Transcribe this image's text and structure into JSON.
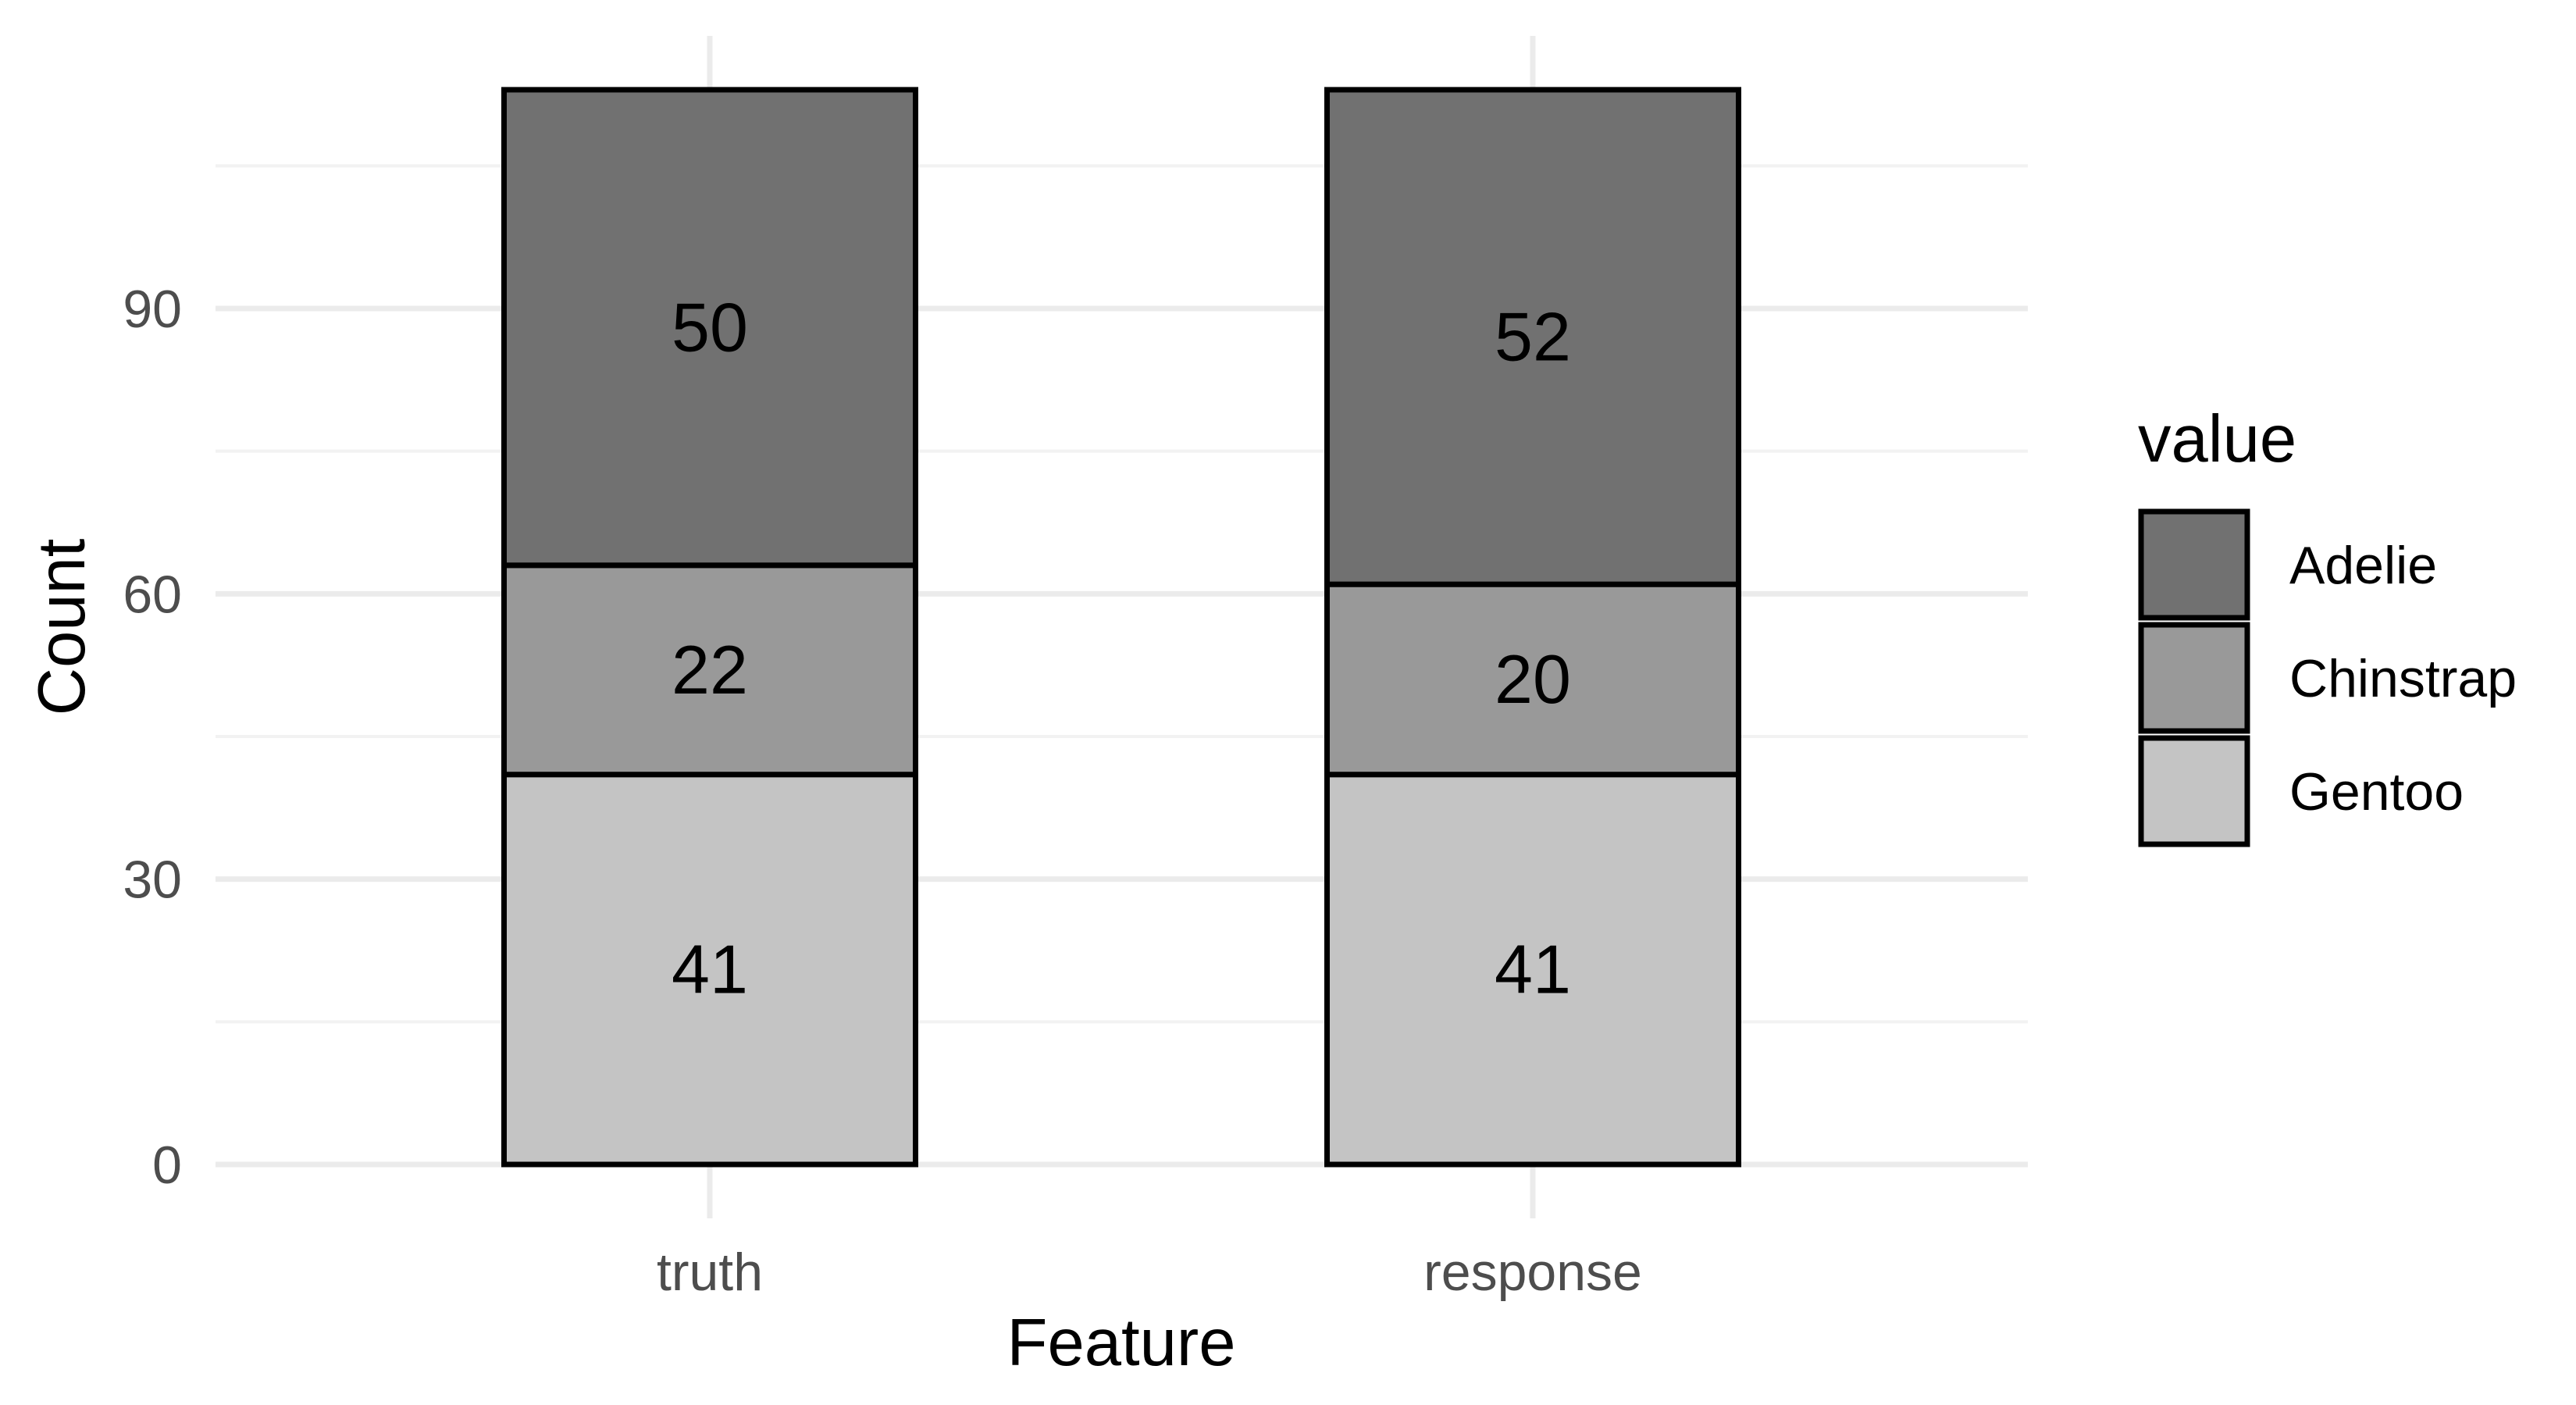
{
  "chart_data": {
    "type": "bar",
    "stacked": true,
    "title": "",
    "xlabel": "Feature",
    "ylabel": "Count",
    "categories": [
      "truth",
      "response"
    ],
    "series": [
      {
        "name": "Gentoo",
        "values": [
          41,
          41
        ],
        "color": "#c4c4c4"
      },
      {
        "name": "Chinstrap",
        "values": [
          22,
          20
        ],
        "color": "#999999"
      },
      {
        "name": "Adelie",
        "values": [
          50,
          52
        ],
        "color": "#717171"
      }
    ],
    "ylim": [
      0,
      113
    ],
    "yticks": [
      0,
      30,
      60,
      90
    ],
    "ytick_labels": [
      "0",
      "30",
      "60",
      "90"
    ],
    "grid": true,
    "legend": {
      "title": "value",
      "position": "right",
      "entries": [
        "Adelie",
        "Chinstrap",
        "Gentoo"
      ]
    }
  },
  "colors": {
    "grid_major": "#ebebeb",
    "grid_minor": "#f2f2f2",
    "bar_outline": "#000000"
  }
}
